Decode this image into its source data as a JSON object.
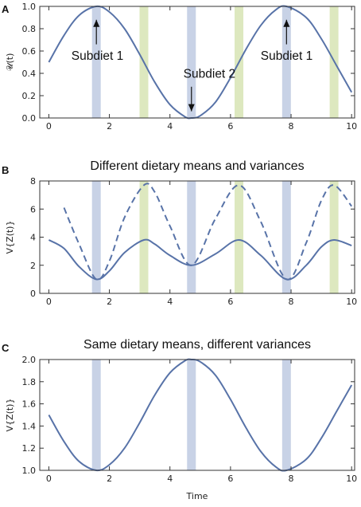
{
  "chart_data": [
    {
      "panel": "A",
      "type": "line",
      "title": "",
      "ylabel": "𝒰(t)",
      "xlabel": "",
      "xlim": [
        -0.3,
        10.1
      ],
      "ylim": [
        0,
        1.0
      ],
      "xticks": [
        "0",
        "2",
        "4",
        "6",
        "8",
        "10"
      ],
      "yticks": [
        "0.0",
        "0.2",
        "0.4",
        "0.6",
        "0.8",
        "1.0"
      ],
      "series": [
        {
          "style": "solid",
          "x": [
            0,
            0.5,
            1,
            1.57,
            2,
            2.5,
            3,
            3.5,
            4,
            4.5,
            4.71,
            5,
            5.5,
            6,
            6.5,
            7,
            7.5,
            7.85,
            8.5,
            9,
            9.5,
            10
          ],
          "y": [
            0.5,
            0.74,
            0.92,
            1.0,
            0.95,
            0.8,
            0.57,
            0.32,
            0.12,
            0.01,
            0.0,
            0.02,
            0.14,
            0.36,
            0.61,
            0.83,
            0.97,
            1.0,
            0.9,
            0.71,
            0.47,
            0.23
          ]
        }
      ],
      "bands_blue": [
        1.57,
        4.71,
        7.85
      ],
      "bands_green": [
        3.14,
        6.28,
        9.42
      ],
      "annotations": [
        {
          "text": "Subdiet 1",
          "x": 0.85,
          "y": 0.52
        },
        {
          "text": "Subdiet 2",
          "x": 4.55,
          "y": 0.36
        },
        {
          "text": "Subdiet 1",
          "x": 7.1,
          "y": 0.52
        }
      ]
    },
    {
      "panel": "B",
      "type": "line",
      "title": "Different dietary means and variances",
      "ylabel": "V{Z(t)}",
      "xlabel": "",
      "xlim": [
        -0.3,
        10.1
      ],
      "ylim": [
        0,
        8
      ],
      "xticks": [
        "0",
        "2",
        "4",
        "6",
        "8",
        "10"
      ],
      "yticks": [
        "0",
        "2",
        "4",
        "6",
        "8"
      ],
      "series": [
        {
          "style": "solid",
          "x": [
            0,
            0.5,
            1,
            1.57,
            2,
            2.5,
            3.14,
            3.5,
            4,
            4.71,
            5.5,
            6.28,
            7,
            7.85,
            8.5,
            9,
            9.42,
            10
          ],
          "y": [
            3.8,
            3.2,
            1.9,
            1.0,
            1.6,
            2.9,
            3.8,
            3.5,
            2.7,
            2.0,
            2.8,
            3.8,
            2.7,
            1.0,
            2.0,
            3.3,
            3.8,
            3.4
          ]
        },
        {
          "style": "dashed",
          "x": [
            0.5,
            1,
            1.57,
            2,
            2.5,
            3.14,
            3.5,
            4,
            4.71,
            5.5,
            6.28,
            7,
            7.85,
            8.5,
            9,
            9.42,
            10
          ],
          "y": [
            6.1,
            3.5,
            1.0,
            2.3,
            5.4,
            7.7,
            7.2,
            4.8,
            2.0,
            5.3,
            7.7,
            5.1,
            1.0,
            3.6,
            6.6,
            7.7,
            6.2
          ]
        }
      ],
      "bands_blue": [
        1.57,
        4.71,
        7.85
      ],
      "bands_green": [
        3.14,
        6.28,
        9.42
      ]
    },
    {
      "panel": "C",
      "type": "line",
      "title": "Same dietary means, different variances",
      "ylabel": "V{Z(t)}",
      "xlabel": "Time",
      "xlim": [
        -0.3,
        10.1
      ],
      "ylim": [
        1.0,
        2.0
      ],
      "xticks": [
        "0",
        "2",
        "4",
        "6",
        "8",
        "10"
      ],
      "yticks": [
        "1.0",
        "1.2",
        "1.4",
        "1.6",
        "1.8",
        "2.0"
      ],
      "series": [
        {
          "style": "solid",
          "x": [
            0,
            0.5,
            1,
            1.57,
            2,
            2.5,
            3,
            3.5,
            4,
            4.5,
            4.71,
            5,
            5.5,
            6,
            6.5,
            7,
            7.5,
            7.85,
            8.5,
            9,
            9.5,
            10
          ],
          "y": [
            1.5,
            1.26,
            1.08,
            1.0,
            1.05,
            1.2,
            1.43,
            1.68,
            1.88,
            1.99,
            2.0,
            1.98,
            1.86,
            1.64,
            1.39,
            1.17,
            1.03,
            1.0,
            1.1,
            1.29,
            1.53,
            1.77
          ]
        }
      ],
      "bands_blue": [
        1.57,
        4.71,
        7.85
      ],
      "bands_green": []
    }
  ]
}
